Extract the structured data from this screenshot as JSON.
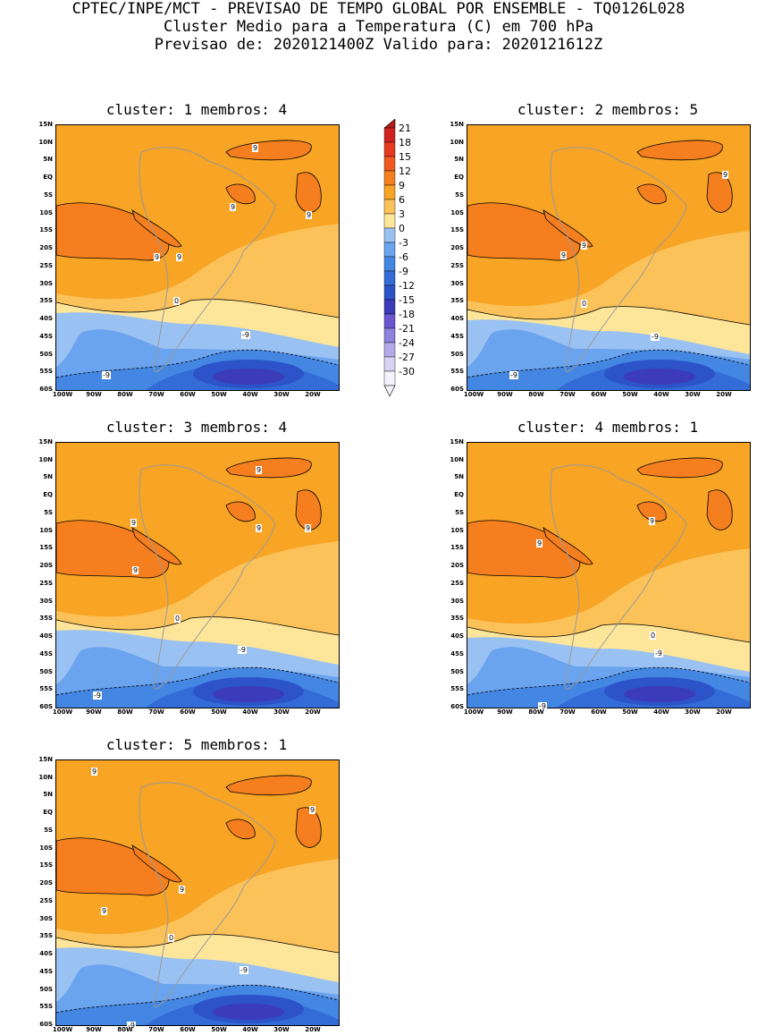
{
  "header": {
    "line1": "CPTEC/INPE/MCT - PREVISAO DE TEMPO GLOBAL POR ENSEMBLE - TQ0126L028",
    "line2": "Cluster Medio para a Temperatura (C) em 700 hPa",
    "line3": "Previsao de: 2020121400Z   Valido para: 2020121612Z"
  },
  "colorbar": {
    "levels": [
      "21",
      "18",
      "15",
      "12",
      "9",
      "6",
      "3",
      "0",
      "-3",
      "-6",
      "-9",
      "-12",
      "-15",
      "-18",
      "-21",
      "-24",
      "-27",
      "-30"
    ],
    "colors": [
      "#b11d1b",
      "#d02320",
      "#e63a1e",
      "#f05a21",
      "#f57f1f",
      "#f8a424",
      "#fbc25a",
      "#fde599",
      "#99c1f2",
      "#6aa3ee",
      "#4487e3",
      "#336cd6",
      "#2c53c8",
      "#3c3bb9",
      "#6a57cf",
      "#8f82de",
      "#b4aae9",
      "#d8d3f4",
      "#f5f3fd"
    ]
  },
  "axes": {
    "lat_ticks": [
      "15N",
      "10N",
      "5N",
      "EQ",
      "5S",
      "10S",
      "15S",
      "20S",
      "25S",
      "30S",
      "35S",
      "40S",
      "45S",
      "50S",
      "55S",
      "60S"
    ],
    "lon_ticks": [
      "100W",
      "90W",
      "80W",
      "70W",
      "60W",
      "50W",
      "40W",
      "30W",
      "20W"
    ]
  },
  "panels": [
    {
      "title": "cluster: 1   membros: 4",
      "contour_labels": [
        "9",
        "9",
        "9",
        "9",
        "9",
        "0",
        "-9",
        "-9"
      ]
    },
    {
      "title": "cluster: 2   membros: 5",
      "contour_labels": [
        "9",
        "9",
        "9",
        "0",
        "-9",
        "-9"
      ]
    },
    {
      "title": "cluster: 3   membros: 4",
      "contour_labels": [
        "9",
        "9",
        "9",
        "9",
        "9",
        "0",
        "-9",
        "-9"
      ]
    },
    {
      "title": "cluster: 4   membros: 1",
      "contour_labels": [
        "9",
        "9",
        "0",
        "-9",
        "-9"
      ]
    },
    {
      "title": "cluster: 5   membros: 1",
      "contour_labels": [
        "9",
        "9",
        "9",
        "9",
        "0",
        "-9",
        "-9"
      ]
    }
  ]
}
